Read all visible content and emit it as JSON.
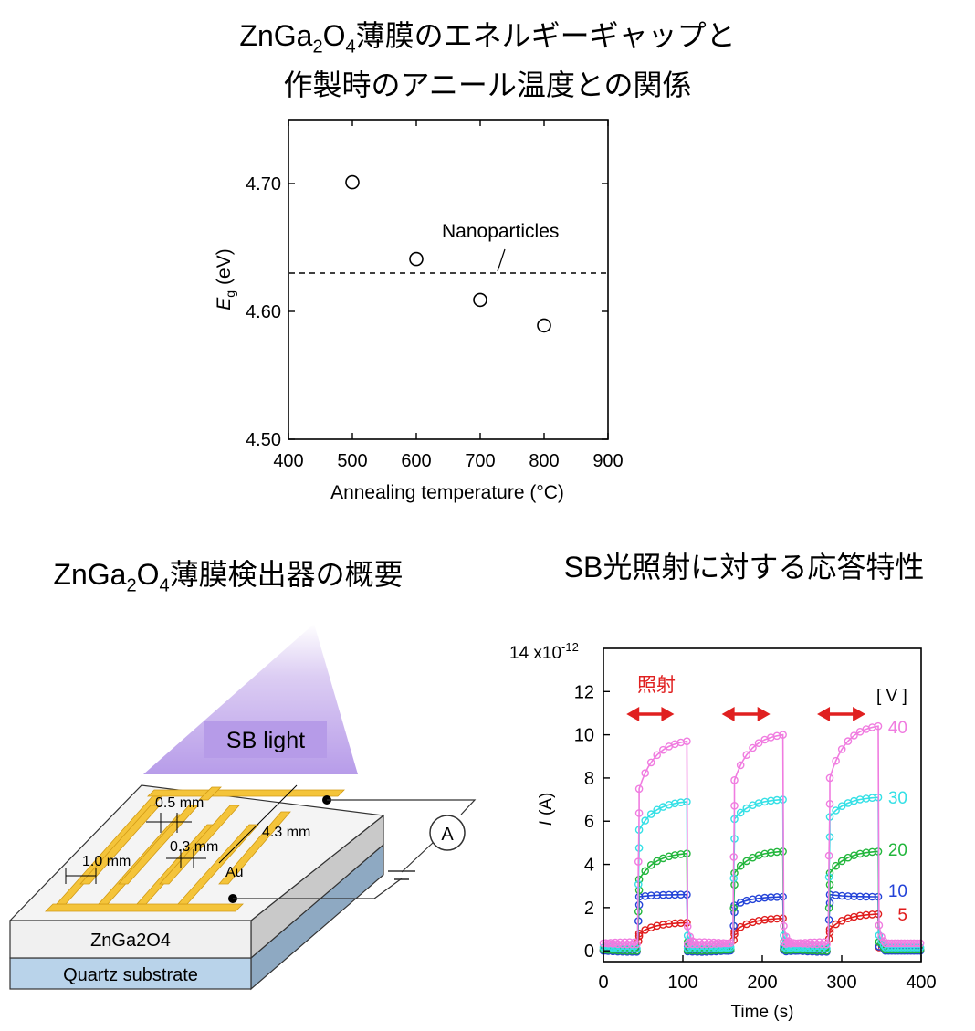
{
  "figure": {
    "title_line1_a": "ZnGa",
    "title_line1_sub1": "2",
    "title_line1_b": "O",
    "title_line1_sub2": "4",
    "title_line1_c": "薄膜のエネルギーギャップと",
    "title_line2": "作製時のアニール温度との関係"
  },
  "diagram": {
    "title_a": "ZnGa",
    "title_sub1": "2",
    "title_b": "O",
    "title_sub2": "4",
    "title_c": "薄膜検出器の概要",
    "light_label": "SB light",
    "layer_film": "ZnGa2O4",
    "layer_substrate": "Quartz substrate",
    "dim_05": "0.5 mm",
    "dim_03": "0.3 mm",
    "dim_10": "1.0 mm",
    "dim_43": "4.3 mm",
    "electrode": "Au",
    "ammeter": "A",
    "colors": {
      "light": "#c9b3ee",
      "label_bg": "#b69be8",
      "gold": "#f4c43a",
      "film": "#f2f2f2",
      "substrate": "#b9d3ea"
    }
  },
  "response": {
    "title": "SB光照射に対する応答特性",
    "irradiation_label": "照射",
    "arrow_color": "#e02020"
  },
  "chart_data": [
    {
      "type": "scatter",
      "title": "",
      "xlabel": "Annealing temperature (°C)",
      "ylabel_main": "E",
      "ylabel_sub": "g",
      "ylabel_unit": "(eV)",
      "xlim": [
        400,
        900
      ],
      "ylim": [
        4.5,
        4.75
      ],
      "x_ticks": [
        400,
        500,
        600,
        700,
        800,
        900
      ],
      "x_tick_labels": [
        "400",
        "500",
        "600",
        "700",
        "800",
        "900"
      ],
      "y_ticks": [
        4.5,
        4.6,
        4.7
      ],
      "y_tick_labels": [
        "4.50",
        "4.60",
        "4.70"
      ],
      "x": [
        500,
        600,
        700,
        800
      ],
      "y": [
        4.701,
        4.641,
        4.609,
        4.589
      ],
      "reference_line": {
        "label": "Nanoparticles",
        "y": 4.63
      },
      "grid": false
    },
    {
      "type": "line",
      "title": "",
      "xlabel": "Time (s)",
      "ylabel_main": "I",
      "ylabel_unit": "(A)",
      "y_scale_label": "14 x10",
      "y_scale_exp": "-12",
      "legend_title": "[ V ]",
      "xlim": [
        0,
        400
      ],
      "ylim": [
        -0.5,
        14
      ],
      "x_ticks": [
        0,
        100,
        200,
        300,
        400
      ],
      "x_tick_labels": [
        "0",
        "100",
        "200",
        "300",
        "400"
      ],
      "y_ticks": [
        0,
        2,
        4,
        6,
        8,
        10,
        12
      ],
      "y_tick_labels": [
        "0",
        "2",
        "4",
        "6",
        "8",
        "10",
        "12"
      ],
      "irradiation_periods": [
        [
          43,
          105
        ],
        [
          163,
          226
        ],
        [
          283,
          346
        ]
      ],
      "series": [
        {
          "name": "40",
          "color": "#f07ce0",
          "dark": 0.35,
          "on_start": [
            7.5,
            7.9,
            8.0
          ],
          "on_end": [
            9.7,
            10.0,
            10.4
          ]
        },
        {
          "name": "30",
          "color": "#35e0e6",
          "dark": 0.15,
          "on_start": [
            5.6,
            6.1,
            6.2
          ],
          "on_end": [
            6.9,
            7.0,
            7.1
          ]
        },
        {
          "name": "20",
          "color": "#22b63c",
          "dark": 0.05,
          "on_start": [
            3.3,
            3.6,
            3.6
          ],
          "on_end": [
            4.5,
            4.6,
            4.6
          ]
        },
        {
          "name": "10",
          "color": "#2343d8",
          "dark": 0.0,
          "on_start": [
            2.5,
            2.1,
            2.6
          ],
          "on_end": [
            2.6,
            2.5,
            2.5
          ]
        },
        {
          "name": "5",
          "color": "#e01c1c",
          "dark": 0.02,
          "on_start": [
            0.8,
            0.9,
            1.0
          ],
          "on_end": [
            1.3,
            1.5,
            1.7
          ]
        }
      ],
      "grid": false
    }
  ]
}
